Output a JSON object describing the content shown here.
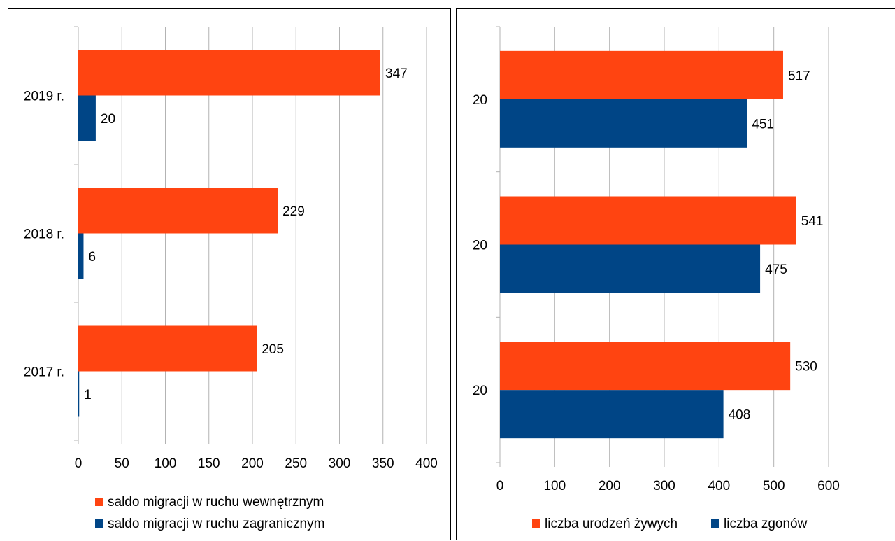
{
  "chart_data": [
    {
      "type": "bar",
      "orientation": "horizontal",
      "categories": [
        "2019 r.",
        "2018 r.",
        "2017 r."
      ],
      "series": [
        {
          "name": "saldo migracji w ruchu wewnętrznym",
          "values": [
            347,
            229,
            205
          ],
          "color": "#ff4411"
        },
        {
          "name": "saldo migracji w ruchu zagranicznym",
          "values": [
            20,
            6,
            1
          ],
          "color": "#004586"
        }
      ],
      "xlim": [
        0,
        400
      ],
      "xticks": [
        "0",
        "50",
        "100",
        "150",
        "200",
        "250",
        "300",
        "350",
        "400"
      ],
      "grid": true,
      "legend_position": "bottom"
    },
    {
      "type": "bar",
      "orientation": "horizontal",
      "categories": [
        "20",
        "20",
        "20"
      ],
      "series": [
        {
          "name": "liczba urodzeń żywych",
          "values": [
            517,
            541,
            530
          ],
          "color": "#ff4411"
        },
        {
          "name": "liczba zgonów",
          "values": [
            451,
            475,
            408
          ],
          "color": "#004586"
        }
      ],
      "xlim": [
        0,
        600
      ],
      "xticks": [
        "0",
        "100",
        "200",
        "300",
        "400",
        "500",
        "600"
      ],
      "grid": true,
      "legend_position": "bottom"
    }
  ]
}
